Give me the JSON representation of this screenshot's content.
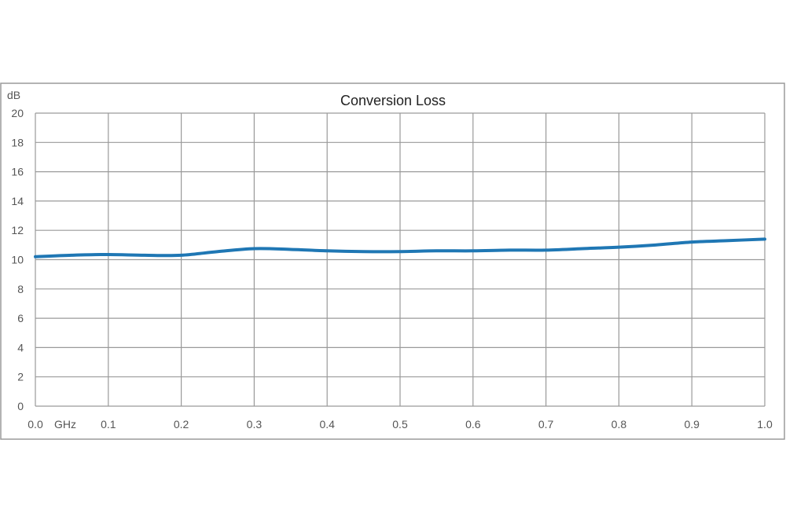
{
  "chart_data": {
    "type": "line",
    "title": "Conversion Loss",
    "ylabel": "dB",
    "xlabel": "GHz",
    "xlim": [
      0.0,
      1.0
    ],
    "ylim": [
      0,
      20
    ],
    "x_ticks": [
      "0.0",
      "0.1",
      "0.2",
      "0.3",
      "0.4",
      "0.5",
      "0.6",
      "0.7",
      "0.8",
      "0.9",
      "1.0"
    ],
    "y_ticks": [
      "0",
      "2",
      "4",
      "6",
      "8",
      "10",
      "12",
      "14",
      "16",
      "18",
      "20"
    ],
    "grid": true,
    "legend": "none",
    "series": [
      {
        "color": "#1f77b4",
        "x": [
          0.0,
          0.05,
          0.1,
          0.15,
          0.2,
          0.25,
          0.3,
          0.35,
          0.4,
          0.45,
          0.5,
          0.55,
          0.6,
          0.65,
          0.7,
          0.75,
          0.8,
          0.85,
          0.9,
          0.95,
          1.0
        ],
        "y": [
          10.2,
          10.3,
          10.35,
          10.3,
          10.3,
          10.55,
          10.75,
          10.7,
          10.6,
          10.55,
          10.55,
          10.6,
          10.6,
          10.65,
          10.65,
          10.75,
          10.85,
          11.0,
          11.2,
          11.3,
          11.4
        ]
      }
    ]
  }
}
